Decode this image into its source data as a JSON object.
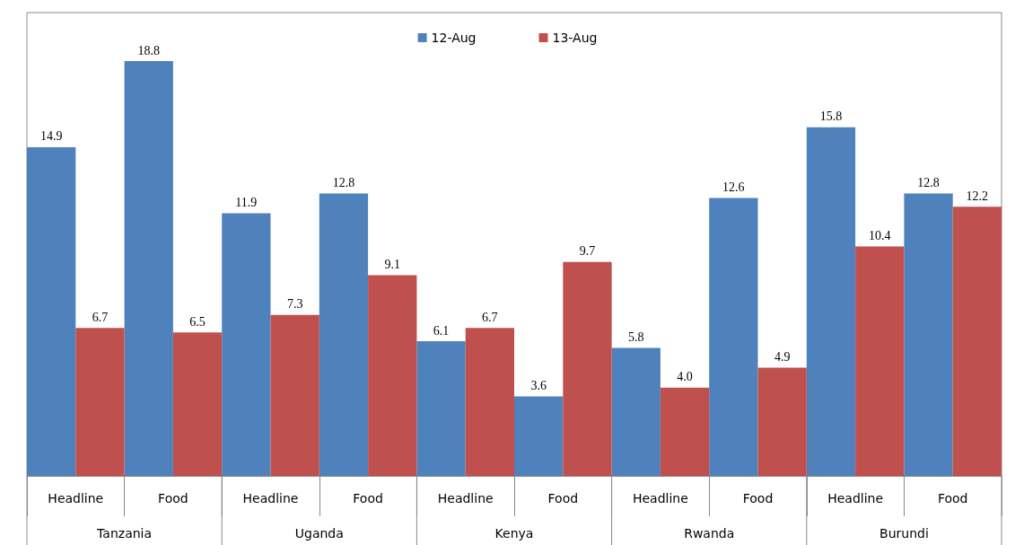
{
  "chart_data": {
    "type": "bar",
    "categories": [
      "Headline",
      "Food",
      "Headline",
      "Food",
      "Headline",
      "Food",
      "Headline",
      "Food",
      "Headline",
      "Food"
    ],
    "series": [
      {
        "name": "12-Aug",
        "color": "#4f81bd",
        "values": [
          14.9,
          18.8,
          11.9,
          12.8,
          6.1,
          3.6,
          5.8,
          12.6,
          15.8,
          12.8
        ],
        "value_labels": [
          "14.9",
          "18.8",
          "11.9",
          "12.8",
          "6.1",
          "3.6",
          "5.8",
          "12.6",
          "15.8",
          "12.8"
        ]
      },
      {
        "name": "13-Aug",
        "color": "#c0504d",
        "values": [
          6.7,
          6.5,
          7.3,
          9.1,
          6.7,
          9.7,
          4.0,
          4.9,
          10.4,
          12.2
        ],
        "value_labels": [
          "6.7",
          "6.5",
          "7.3",
          "9.1",
          "6.7",
          "9.7",
          "4.0",
          "4.9",
          "10.4",
          "12.2"
        ]
      }
    ],
    "annotations": [
      "Tanzania",
      "Uganda",
      "Kenya",
      "Rwanda",
      "Burundi"
    ],
    "legend": "top"
  }
}
